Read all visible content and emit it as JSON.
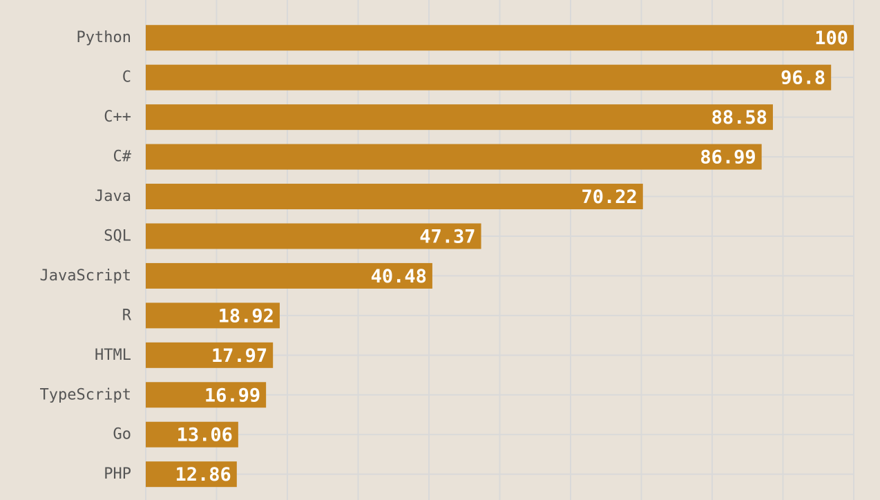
{
  "chart_data": {
    "type": "bar",
    "orientation": "horizontal",
    "categories": [
      "Python",
      "C",
      "C++",
      "C#",
      "Java",
      "SQL",
      "JavaScript",
      "R",
      "HTML",
      "TypeScript",
      "Go",
      "PHP"
    ],
    "values": [
      100,
      96.8,
      88.58,
      86.99,
      70.22,
      47.37,
      40.48,
      18.92,
      17.97,
      16.99,
      13.06,
      12.86
    ],
    "xlim": [
      0,
      100
    ],
    "grid": true,
    "bar_color": "#c4841f",
    "data_label_color": "#ffffff",
    "background": "#e9e2d8"
  }
}
